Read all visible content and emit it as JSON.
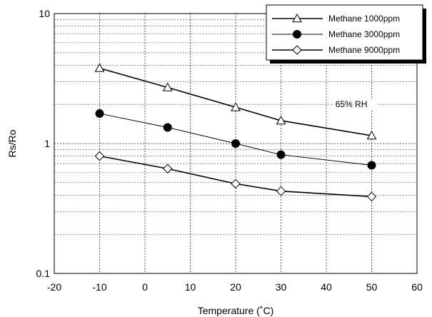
{
  "chart_data": {
    "type": "line",
    "xlabel": "Temperature (˚C)",
    "ylabel": "Rs/Ro",
    "xlim": [
      -20,
      60
    ],
    "ylim": [
      0.1,
      10
    ],
    "yscale": "log",
    "x_ticks": [
      -20,
      -10,
      0,
      10,
      20,
      30,
      40,
      50,
      60
    ],
    "x_tick_labels": [
      "-20",
      "-10",
      "0",
      "10",
      "20",
      "30",
      "40",
      "50",
      "60"
    ],
    "y_tick_labels": [
      "0.1",
      "1",
      "10"
    ],
    "y_tick_values": [
      0.1,
      1,
      10
    ],
    "grid": true,
    "legend_position": "top-right",
    "series": [
      {
        "name": "Methane 1000ppm",
        "marker": "triangle-open",
        "x": [
          -10,
          5,
          20,
          30,
          50
        ],
        "y": [
          3.8,
          2.7,
          1.9,
          1.5,
          1.15
        ]
      },
      {
        "name": "Methane 3000ppm",
        "marker": "circle-filled",
        "x": [
          -10,
          5,
          20,
          30,
          50
        ],
        "y": [
          1.7,
          1.33,
          1.0,
          0.82,
          0.68
        ]
      },
      {
        "name": "Methane 9000ppm",
        "marker": "diamond-open",
        "x": [
          -10,
          5,
          20,
          30,
          50
        ],
        "y": [
          0.8,
          0.64,
          0.49,
          0.43,
          0.39
        ]
      }
    ],
    "annotations": [
      {
        "text": "65% RH",
        "x": 42,
        "y": 2.0
      }
    ]
  }
}
